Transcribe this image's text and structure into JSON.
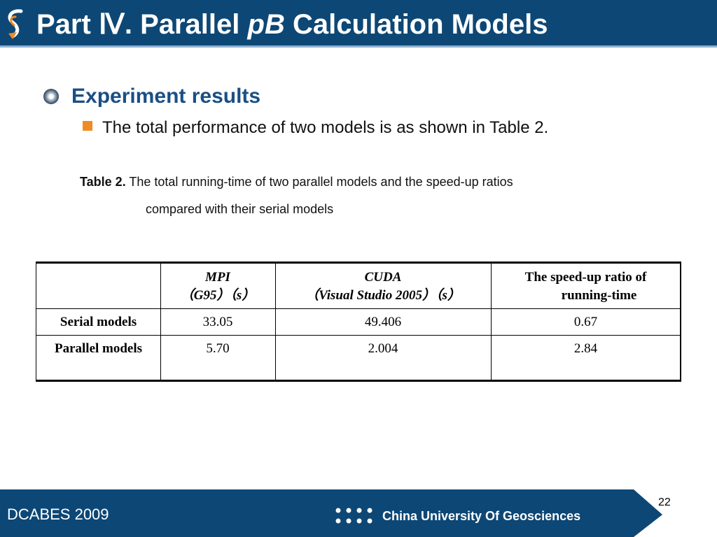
{
  "header": {
    "title_prefix": "Part Ⅳ. Parallel ",
    "title_em": "pB",
    "title_suffix": " Calculation Models",
    "logo_icon": "s-curve-arrow-icon",
    "bg_color": "#0d4775"
  },
  "section": {
    "heading": "Experiment results",
    "bullet_text": "The total performance of two models is as shown in Table 2."
  },
  "caption": {
    "label": "Table 2.",
    "line1": " The total running-time of two parallel models and the speed-up ratios",
    "line2": "compared with their serial models"
  },
  "table": {
    "header": {
      "mpi": {
        "line1": "MPI",
        "line2": "（G95）（s）"
      },
      "cuda": {
        "line1": "CUDA",
        "line2": "（Visual Studio 2005）（s）"
      },
      "ratio": {
        "line1": "The speed-up ratio of",
        "line2": "running-time"
      }
    },
    "rows": [
      {
        "label": "Serial models",
        "mpi": "33.05",
        "cuda": "49.406",
        "ratio": "0.67"
      },
      {
        "label": "Parallel models",
        "mpi": "5.70",
        "cuda": "2.004",
        "ratio": "2.84"
      }
    ]
  },
  "footer": {
    "left": "DCABES 2009",
    "right": "China University Of Geosciences",
    "page": "22",
    "dots_icon": "dot-grid-icon",
    "bg_color": "#0d4775"
  }
}
